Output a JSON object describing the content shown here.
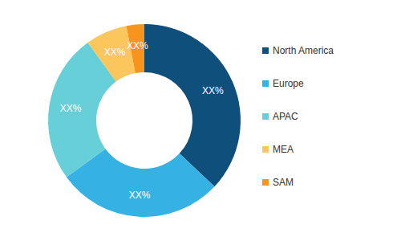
{
  "chart_data": {
    "type": "pie",
    "categories": [
      "North America",
      "Europe",
      "APAC",
      "MEA",
      "SAM"
    ],
    "values": [
      37,
      28,
      25,
      7,
      3
    ],
    "value_labels": [
      "XX%",
      "XX%",
      "XX%",
      "XX%",
      "XX%"
    ],
    "colors": [
      "#0e4f7c",
      "#35b1e4",
      "#66cfd8",
      "#fbc65c",
      "#f7941d"
    ],
    "data_labels": true,
    "legend": "right"
  }
}
